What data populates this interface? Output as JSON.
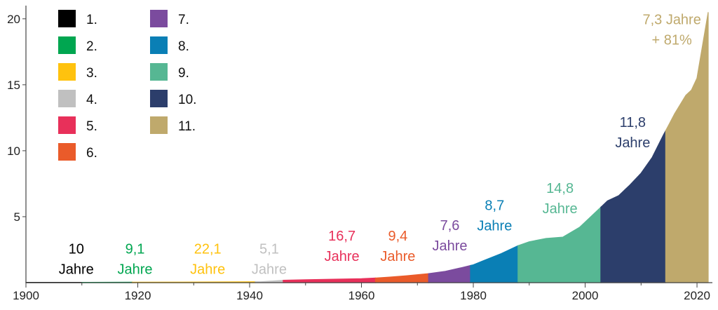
{
  "chart_data": {
    "type": "area",
    "xlim": [
      1900,
      2022
    ],
    "ylim": [
      0,
      21
    ],
    "x_ticks": [
      1900,
      1920,
      1940,
      1960,
      1980,
      2000,
      2020
    ],
    "y_ticks": [
      5,
      10,
      15,
      20
    ],
    "legend": {
      "placement": "top-left",
      "entries": [
        {
          "label": "1.",
          "color": "#000000"
        },
        {
          "label": "2.",
          "color": "#00A650"
        },
        {
          "label": "3.",
          "color": "#FFC20E"
        },
        {
          "label": "4.",
          "color": "#C0C0C0"
        },
        {
          "label": "5.",
          "color": "#E8305A"
        },
        {
          "label": "6.",
          "color": "#EA5B2A"
        },
        {
          "label": "7.",
          "color": "#7B4B9E"
        },
        {
          "label": "8.",
          "color": "#0A7FB5"
        },
        {
          "label": "9.",
          "color": "#56B793"
        },
        {
          "label": "10.",
          "color": "#2C3E6B"
        },
        {
          "label": "11.",
          "color": "#BFA96C"
        }
      ]
    },
    "series": {
      "x": [
        1900,
        1910,
        1919,
        1928,
        1942,
        1944,
        1946,
        1950,
        1955,
        1960,
        1962,
        1965,
        1968,
        1972,
        1975,
        1978,
        1980,
        1982,
        1985,
        1988,
        1990,
        1993,
        1996,
        1999,
        2001,
        2003,
        2004,
        2006,
        2008,
        2010,
        2012,
        2014,
        2015,
        2016,
        2018,
        2019,
        2020,
        2021,
        2022
      ],
      "y": [
        0.02,
        0.02,
        0.03,
        0.04,
        0.07,
        0.12,
        0.18,
        0.22,
        0.26,
        0.3,
        0.34,
        0.42,
        0.52,
        0.68,
        0.86,
        1.15,
        1.35,
        1.7,
        2.2,
        2.8,
        3.1,
        3.35,
        3.45,
        4.2,
        5.0,
        5.8,
        6.2,
        6.6,
        7.4,
        8.3,
        9.5,
        11.2,
        12.0,
        12.8,
        14.2,
        14.6,
        15.5,
        18.0,
        20.5
      ]
    },
    "segments": [
      {
        "start": 1900,
        "end": 1910,
        "color": "#000000"
      },
      {
        "start": 1910,
        "end": 1919,
        "color": "#00A650"
      },
      {
        "start": 1919,
        "end": 1941,
        "color": "#FFC20E"
      },
      {
        "start": 1941,
        "end": 1946,
        "color": "#C0C0C0"
      },
      {
        "start": 1946,
        "end": 1962.5,
        "color": "#E8305A"
      },
      {
        "start": 1962.5,
        "end": 1972,
        "color": "#EA5B2A"
      },
      {
        "start": 1972,
        "end": 1979.5,
        "color": "#7B4B9E"
      },
      {
        "start": 1979.5,
        "end": 1988,
        "color": "#0A7FB5"
      },
      {
        "start": 1988,
        "end": 2002.8,
        "color": "#56B793"
      },
      {
        "start": 2002.8,
        "end": 2014.4,
        "color": "#2C3E6B"
      },
      {
        "start": 2014.4,
        "end": 2022,
        "color": "#BFA96C"
      }
    ],
    "annotations": [
      {
        "lines": [
          "10",
          "Jahre"
        ],
        "color": "#000000",
        "x": 1909,
        "y": 2.2
      },
      {
        "lines": [
          "9,1",
          "Jahre"
        ],
        "color": "#00A650",
        "x": 1919.5,
        "y": 2.2
      },
      {
        "lines": [
          "22,1",
          "Jahre"
        ],
        "color": "#FFC20E",
        "x": 1932.5,
        "y": 2.2
      },
      {
        "lines": [
          "5,1",
          "Jahre"
        ],
        "color": "#C0C0C0",
        "x": 1943.5,
        "y": 2.2
      },
      {
        "lines": [
          "16,7",
          "Jahre"
        ],
        "color": "#E8305A",
        "x": 1956.5,
        "y": 3.2
      },
      {
        "lines": [
          "9,4",
          "Jahre"
        ],
        "color": "#EA5B2A",
        "x": 1966.5,
        "y": 3.2
      },
      {
        "lines": [
          "7,6",
          "Jahre"
        ],
        "color": "#7B4B9E",
        "x": 1975.8,
        "y": 4.0
      },
      {
        "lines": [
          "8,7",
          "Jahre"
        ],
        "color": "#0A7FB5",
        "x": 1983.8,
        "y": 5.5
      },
      {
        "lines": [
          "14,8",
          "Jahre"
        ],
        "color": "#56B793",
        "x": 1995.5,
        "y": 6.8
      },
      {
        "lines": [
          "11,8",
          "Jahre"
        ],
        "color": "#2C3E6B",
        "x": 2008.5,
        "y": 11.8
      },
      {
        "lines": [
          "7,3 Jahre",
          "+ 81%"
        ],
        "color": "#BFA96C",
        "x": 2015.5,
        "y": 19.6
      }
    ]
  }
}
